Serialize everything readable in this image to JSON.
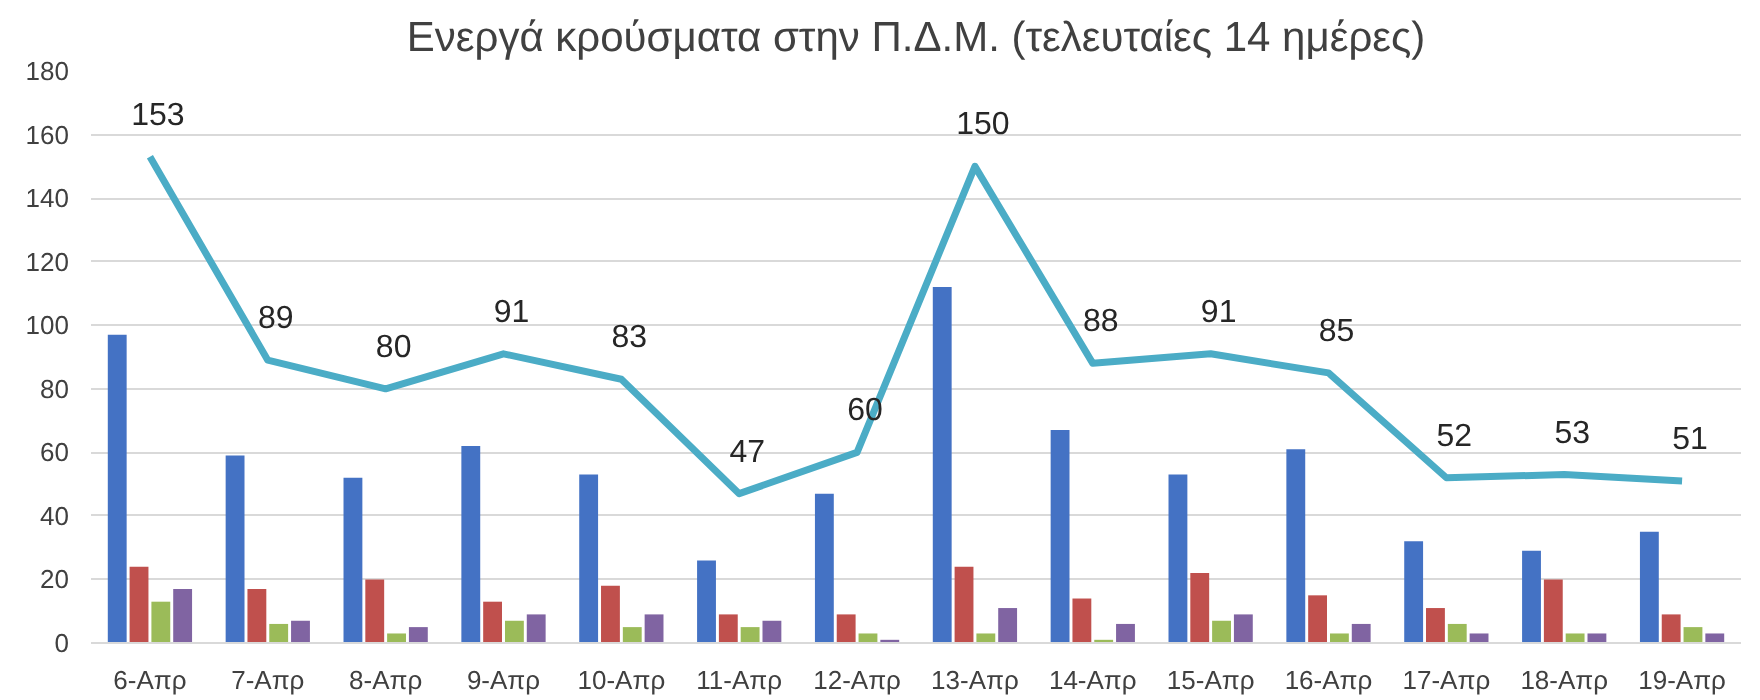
{
  "chart_data": {
    "type": "bar",
    "title": "Ενεργά κρούσματα στην Π.Δ.Μ. (τελευταίες 14 ημέρες)",
    "categories": [
      "6-Απρ",
      "7-Απρ",
      "8-Απρ",
      "9-Απρ",
      "10-Απρ",
      "11-Απρ",
      "12-Απρ",
      "13-Απρ",
      "14-Απρ",
      "15-Απρ",
      "16-Απρ",
      "17-Απρ",
      "18-Απρ",
      "19-Απρ"
    ],
    "series": [
      {
        "color": "#4472c4",
        "values": [
          97,
          59,
          52,
          62,
          53,
          26,
          47,
          112,
          67,
          53,
          61,
          32,
          29,
          35
        ]
      },
      {
        "color": "#c0504d",
        "values": [
          24,
          17,
          20,
          13,
          18,
          9,
          9,
          24,
          14,
          22,
          15,
          11,
          20,
          9
        ]
      },
      {
        "color": "#9bbb59",
        "values": [
          13,
          6,
          3,
          7,
          5,
          5,
          3,
          3,
          1,
          7,
          3,
          6,
          3,
          5
        ]
      },
      {
        "color": "#8064a2",
        "values": [
          17,
          7,
          5,
          9,
          9,
          7,
          1,
          11,
          6,
          9,
          6,
          3,
          3,
          3
        ]
      },
      {
        "type": "line",
        "color": "#4bacc6",
        "values": [
          153,
          89,
          80,
          91,
          83,
          47,
          60,
          150,
          88,
          91,
          85,
          52,
          53,
          51
        ],
        "value_labels": [
          "153",
          "89",
          "80",
          "91",
          "83",
          "47",
          "60",
          "150",
          "88",
          "91",
          "85",
          "52",
          "53",
          "51"
        ]
      }
    ],
    "ylim": [
      0,
      180
    ],
    "yticks": [
      0,
      20,
      40,
      60,
      80,
      100,
      120,
      140,
      160,
      180
    ],
    "grid": "y"
  }
}
